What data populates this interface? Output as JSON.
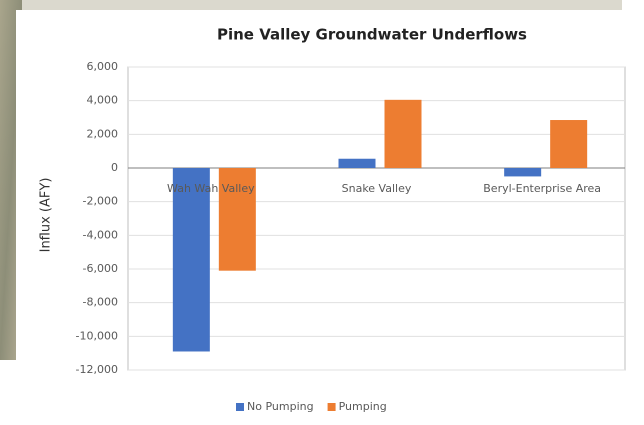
{
  "chart_data": {
    "type": "bar",
    "title": "Pine Valley Groundwater Underflows",
    "y_label": "Influx (AFY)",
    "categories": [
      "Wah Wah Valley",
      "Snake Valley",
      "Beryl-Enterprise Area"
    ],
    "series": [
      {
        "name": "No Pumping",
        "color": "#4472c4",
        "values": [
          -10900,
          550,
          -500
        ]
      },
      {
        "name": "Pumping",
        "color": "#ed7d31",
        "values": [
          -6100,
          4050,
          2850
        ]
      }
    ],
    "ylim": [
      -12000,
      6000
    ],
    "yticks": [
      {
        "value": 6000,
        "label": "6,000"
      },
      {
        "value": 4000,
        "label": "4,000"
      },
      {
        "value": 2000,
        "label": "2,000"
      },
      0,
      {
        "value": -2000,
        "label": "-2,000"
      },
      {
        "value": -4000,
        "label": "-4,000"
      },
      {
        "value": -6000,
        "label": "-6,000"
      },
      {
        "value": -8000,
        "label": "-8,000"
      },
      {
        "value": -10000,
        "label": "-10,000"
      },
      {
        "value": -12000,
        "label": "-12,000"
      }
    ],
    "grid": true,
    "legend": "bottom"
  }
}
